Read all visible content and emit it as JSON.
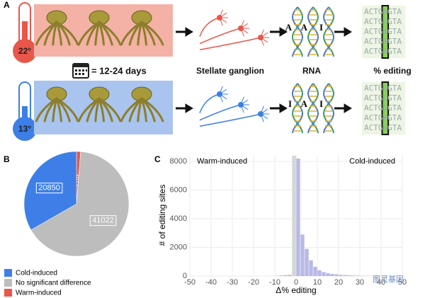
{
  "panel_a": {
    "label": "A",
    "warm_temp": "22°",
    "cold_temp": "13°",
    "duration": "= 12-24 days",
    "stage_labels": [
      "Stellate ganglion",
      "RNA",
      "% editing"
    ],
    "warm_rna_bases": [
      "A",
      "A",
      "I"
    ],
    "cold_rna_bases": [
      "I",
      "A",
      "I"
    ],
    "warm_sequences": [
      "ACTGAGTA",
      "ACTGGGTA",
      "ACTGAGTA",
      "ACTGAGTA",
      "ACTGAGTA"
    ],
    "cold_sequences": [
      "ACTGGGTA",
      "ACTGGGTA",
      "ACTGGGTA",
      "ACTGAGTA",
      "ACTGGGTA"
    ]
  },
  "chart_data": [
    {
      "type": "pie",
      "panel_label": "B",
      "categories": [
        "Warm-induced",
        "No significant difference",
        "Cold-induced"
      ],
      "values": [
        789,
        41022,
        20850
      ],
      "colors": [
        "#e8574a",
        "#bdbdbd",
        "#3d7fe6"
      ],
      "legend_order": [
        2,
        1,
        0
      ]
    },
    {
      "type": "histogram",
      "panel_label": "C",
      "annotations": [
        "Warm-induced",
        "Cold-induced"
      ],
      "xlabel": "Δ% editing",
      "ylabel": "# of editing sites",
      "bins": [
        -10,
        -8,
        -6,
        -4,
        -2,
        0,
        2,
        4,
        6,
        8,
        10,
        12,
        14,
        16,
        18,
        20,
        22,
        24,
        26,
        28,
        30,
        32,
        34,
        36,
        38,
        40
      ],
      "counts": [
        20,
        40,
        60,
        80,
        8400,
        8200,
        2900,
        1900,
        1100,
        650,
        400,
        280,
        200,
        150,
        120,
        90,
        70,
        50,
        40,
        30,
        20,
        15,
        10,
        5,
        5
      ],
      "bar_colors": [
        "#eaa3a3",
        "#eaa3a3",
        "#eaa3a3",
        "#eaa3a3",
        "#d6d6d6",
        "#b9b9e6",
        "#b9b9e6",
        "#b9b9e6",
        "#b9b9e6",
        "#b9b9e6",
        "#b9b9e6",
        "#b9b9e6",
        "#b9b9e6",
        "#b9b9e6",
        "#b9b9e6",
        "#b9b9e6",
        "#b9b9e6",
        "#b9b9e6",
        "#b9b9e6",
        "#b9b9e6",
        "#b9b9e6",
        "#b9b9e6",
        "#b9b9e6",
        "#b9b9e6",
        "#b9b9e6"
      ],
      "xlim": [
        -50,
        50
      ],
      "xticks": [
        -50,
        -40,
        -30,
        -20,
        -10,
        0,
        10,
        20,
        30,
        40,
        50
      ],
      "ylim": [
        0,
        8500
      ],
      "yticks": [
        0,
        2000,
        4000,
        6000,
        8000
      ],
      "grid": true
    }
  ],
  "watermark": "图灵基因"
}
